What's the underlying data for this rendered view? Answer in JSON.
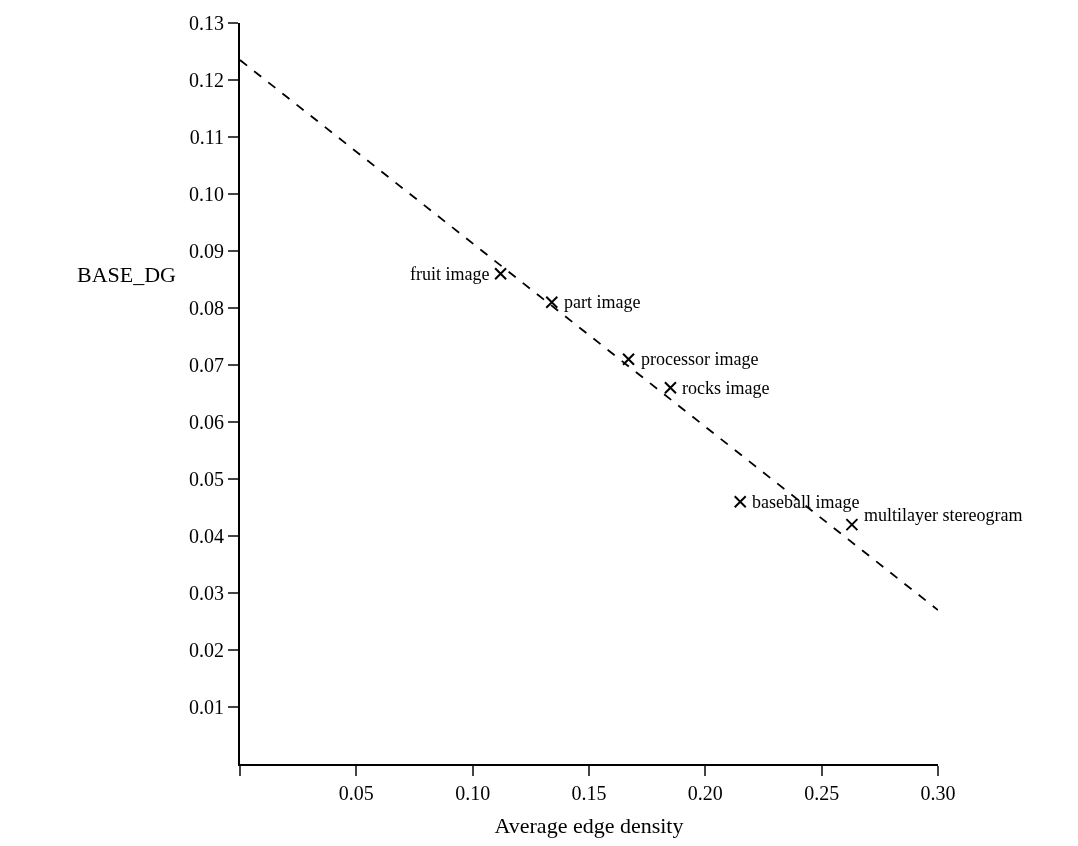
{
  "chart_data": {
    "type": "scatter",
    "xlabel": "Average edge density",
    "ylabel": "BASE_DG",
    "xlim": [
      0,
      0.3
    ],
    "ylim": [
      0,
      0.13
    ],
    "xticks": [
      {
        "value": 0,
        "label": null
      },
      0.05,
      {
        "value": 0.1,
        "label": "0.10"
      },
      0.15,
      {
        "value": 0.2,
        "label": "0.20"
      },
      0.25,
      {
        "value": 0.3,
        "label": "0.30"
      }
    ],
    "yticks": [
      0.01,
      0.02,
      0.03,
      0.04,
      0.05,
      0.06,
      0.07,
      0.08,
      0.09,
      {
        "value": 0.1,
        "label": "0.10"
      },
      0.11,
      0.12,
      0.13
    ],
    "series": [
      {
        "marker": "cross",
        "color": "#000000",
        "x": [
          0.112,
          0.134,
          0.167,
          0.185,
          0.215,
          0.263
        ],
        "values": [
          0.086,
          0.081,
          0.071,
          0.066,
          0.046,
          0.042
        ]
      },
      {
        "type": "line",
        "color": "#000000",
        "line_style": "dashed",
        "x": [
          0,
          0.3
        ],
        "values": [
          0.1235,
          0.027
        ]
      }
    ],
    "annotations": [
      {
        "text": "fruit image",
        "x": 0.112,
        "y": 0.086
      },
      {
        "text": "part image",
        "x": 0.134,
        "y": 0.081
      },
      {
        "text": "processor image",
        "x": 0.167,
        "y": 0.071
      },
      {
        "text": "rocks image",
        "x": 0.185,
        "y": 0.066
      },
      {
        "text": "baseball image",
        "x": 0.215,
        "y": 0.046
      },
      {
        "text": "multilayer stereogram",
        "x": 0.263,
        "y": 0.042
      }
    ]
  }
}
